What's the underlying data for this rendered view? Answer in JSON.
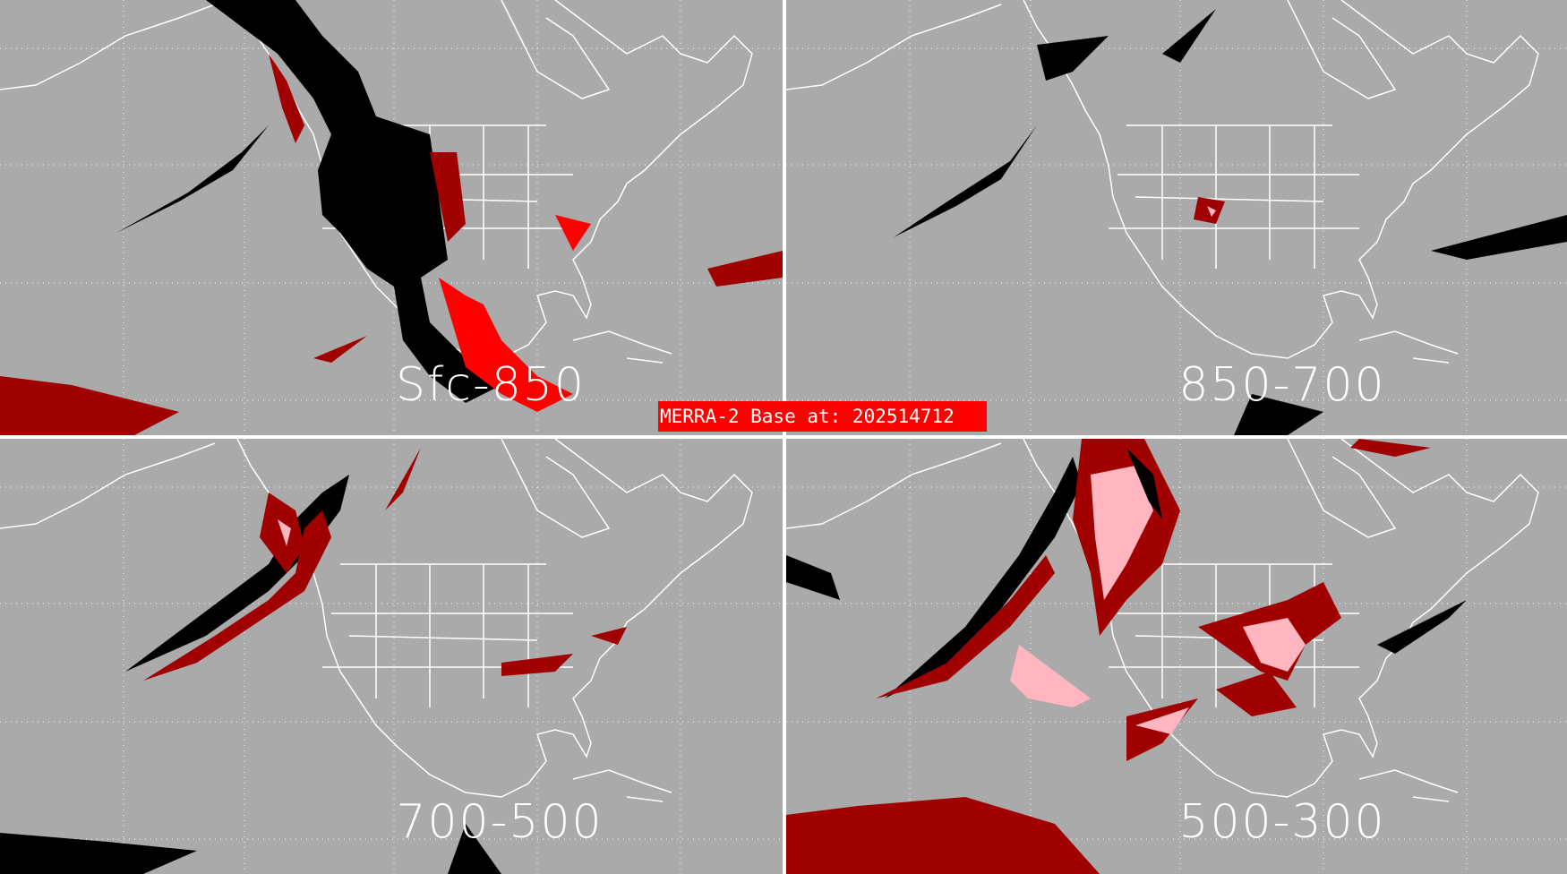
{
  "banner": {
    "text": "MERRA-2 Base at: 202514712"
  },
  "panels": [
    {
      "label": "Sfc-850"
    },
    {
      "label": "850-700"
    },
    {
      "label": "700-500"
    },
    {
      "label": "500-300"
    }
  ],
  "colors": {
    "background": "#aaaaaa",
    "coastline": "#ffffff",
    "black_category": "#000000",
    "dark_red_category": "#a00000",
    "red_category": "#ff0000",
    "pink_category": "#ffb6c1",
    "banner": "#ff0000"
  }
}
